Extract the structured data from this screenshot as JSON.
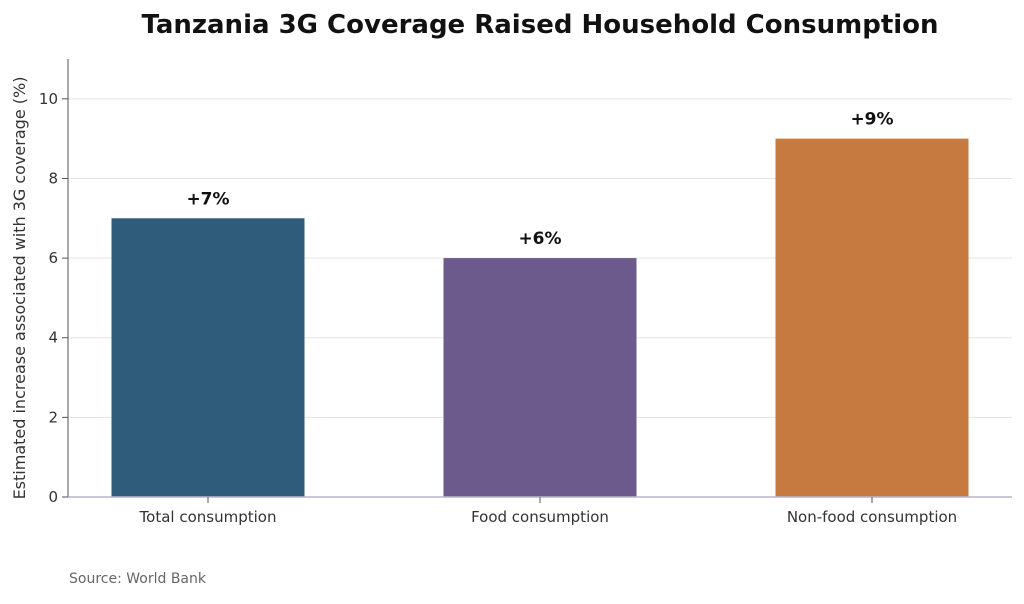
{
  "chart_data": {
    "type": "bar",
    "title": "Tanzania 3G Coverage Raised Household Consumption",
    "ylabel": "Estimated increase associated with 3G coverage (%)",
    "xlabel": "",
    "categories": [
      "Total consumption",
      "Food consumption",
      "Non-food consumption"
    ],
    "values": [
      7,
      6,
      9
    ],
    "data_labels": [
      "+7%",
      "+6%",
      "+9%"
    ],
    "colors": [
      "#2e5c7a",
      "#6c5a8c",
      "#c77a40"
    ],
    "ylim": [
      0,
      11
    ],
    "yticks": [
      0,
      2,
      4,
      6,
      8,
      10
    ],
    "grid": true
  },
  "source": "Source: World Bank"
}
